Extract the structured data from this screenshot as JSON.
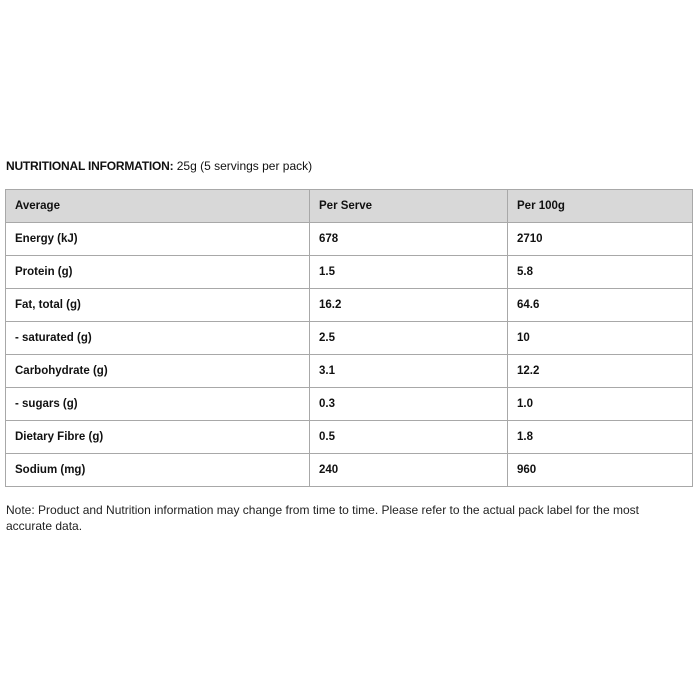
{
  "heading": {
    "bold_label": "NUTRITIONAL INFORMATION:",
    "serving_info": "25g (5 servings per pack)"
  },
  "table": {
    "headers": [
      "Average",
      "Per Serve",
      "Per 100g"
    ],
    "rows": [
      [
        "Energy (kJ)",
        "678",
        "2710"
      ],
      [
        "Protein (g)",
        "1.5",
        "5.8"
      ],
      [
        "Fat, total (g)",
        "16.2",
        "64.6"
      ],
      [
        "- saturated (g)",
        "2.5",
        "10"
      ],
      [
        "Carbohydrate (g)",
        "3.1",
        "12.2"
      ],
      [
        "- sugars (g)",
        "0.3",
        "1.0"
      ],
      [
        "Dietary Fibre (g)",
        "0.5",
        "1.8"
      ],
      [
        "Sodium (mg)",
        "240",
        "960"
      ]
    ]
  },
  "note": "Note: Product and Nutrition information may change from time to time. Please refer to the actual pack label for the most accurate data.",
  "colors": {
    "header_background": "#d8d8d8",
    "border": "#a8a8a8"
  }
}
